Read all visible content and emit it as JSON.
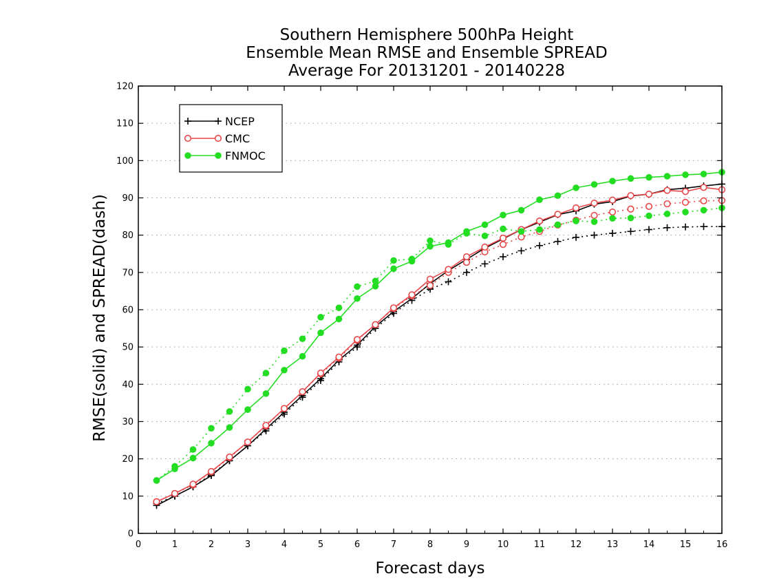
{
  "chart_data": {
    "type": "line",
    "title": [
      "Southern Hemisphere 500hPa Height",
      "Ensemble Mean RMSE and Ensemble SPREAD",
      "Average For 20131201 - 20140228"
    ],
    "xlabel": "Forecast days",
    "ylabel": "RMSE(solid) and SPREAD(dash)",
    "xlim": [
      0,
      16
    ],
    "ylim": [
      0,
      120
    ],
    "xticks": [
      0,
      1,
      2,
      3,
      4,
      5,
      6,
      7,
      8,
      9,
      10,
      11,
      12,
      13,
      14,
      15,
      16
    ],
    "yticks": [
      0,
      10,
      20,
      30,
      40,
      50,
      60,
      70,
      80,
      90,
      100,
      110,
      120
    ],
    "grid": true,
    "legend_position": "top-left",
    "x": [
      0.5,
      1,
      1.5,
      2,
      2.5,
      3,
      3.5,
      4,
      4.5,
      5,
      5.5,
      6,
      6.5,
      7,
      7.5,
      8,
      8.5,
      9,
      9.5,
      10,
      10.5,
      11,
      11.5,
      12,
      12.5,
      13,
      13.5,
      14,
      14.5,
      15,
      15.5,
      16
    ],
    "series": [
      {
        "name": "NCEP",
        "color": "#000000",
        "marker": "plus",
        "rmse": [
          7.5,
          10,
          12.5,
          15.5,
          19.5,
          23.5,
          28,
          32.5,
          37,
          41.5,
          46.5,
          50.5,
          55.5,
          59.5,
          63,
          67,
          70.5,
          73.5,
          76.5,
          79,
          81.5,
          83.5,
          85.5,
          86.5,
          88.3,
          89,
          90.5,
          91,
          92.2,
          92.6,
          93.2,
          93.7
        ],
        "spread": [
          8,
          10,
          12.5,
          15.8,
          19.5,
          23.5,
          27.5,
          32,
          36.5,
          41,
          46,
          50,
          55,
          59,
          62.5,
          65.5,
          67.5,
          70,
          72.3,
          74.2,
          75.8,
          77.2,
          78.3,
          79.4,
          80,
          80.5,
          81,
          81.5,
          82,
          82.2,
          82.3,
          82.3
        ]
      },
      {
        "name": "CMC",
        "color": "#e8474a",
        "marker": "circle-open",
        "rmse": [
          8.5,
          10.7,
          13.2,
          16.6,
          20.5,
          24.5,
          29,
          33.5,
          38,
          43,
          47.3,
          52,
          56,
          60.5,
          64,
          68.2,
          70.8,
          74.2,
          76.8,
          79.2,
          81.5,
          83.8,
          85.6,
          87.3,
          88.6,
          89.4,
          90.6,
          91,
          92,
          91.7,
          92.8,
          92.2
        ],
        "spread": [
          8.5,
          10.7,
          13,
          16.5,
          20.3,
          24.5,
          28.8,
          33.5,
          38,
          42.8,
          47,
          51.8,
          56,
          60.3,
          63.7,
          66.5,
          70,
          72.7,
          75.5,
          77.5,
          79.5,
          81,
          82.7,
          84,
          85.3,
          86.2,
          87,
          87.7,
          88.4,
          88.8,
          89.2,
          89.3
        ]
      },
      {
        "name": "FNMOC",
        "color": "#22dd22",
        "marker": "circle-filled",
        "rmse": [
          14.2,
          17.3,
          20.2,
          24.2,
          28.4,
          33.2,
          37.5,
          43.8,
          47.5,
          53.8,
          57.5,
          63,
          66.3,
          71,
          73,
          77,
          78,
          81,
          82.8,
          85.4,
          86.7,
          89.5,
          90.6,
          92.7,
          93.6,
          94.5,
          95.2,
          95.5,
          95.8,
          96.2,
          96.4,
          96.9
        ],
        "spread": [
          14.2,
          18,
          22.5,
          28.2,
          32.7,
          38.7,
          43,
          49,
          52.2,
          58,
          60.5,
          66.2,
          67.7,
          73.2,
          73.6,
          78.5,
          77.5,
          80.5,
          79.8,
          81.7,
          81,
          81.5,
          82.8,
          83.8,
          83.6,
          84.5,
          84.6,
          85.2,
          85.7,
          86.2,
          86.7,
          87.3
        ]
      }
    ]
  }
}
